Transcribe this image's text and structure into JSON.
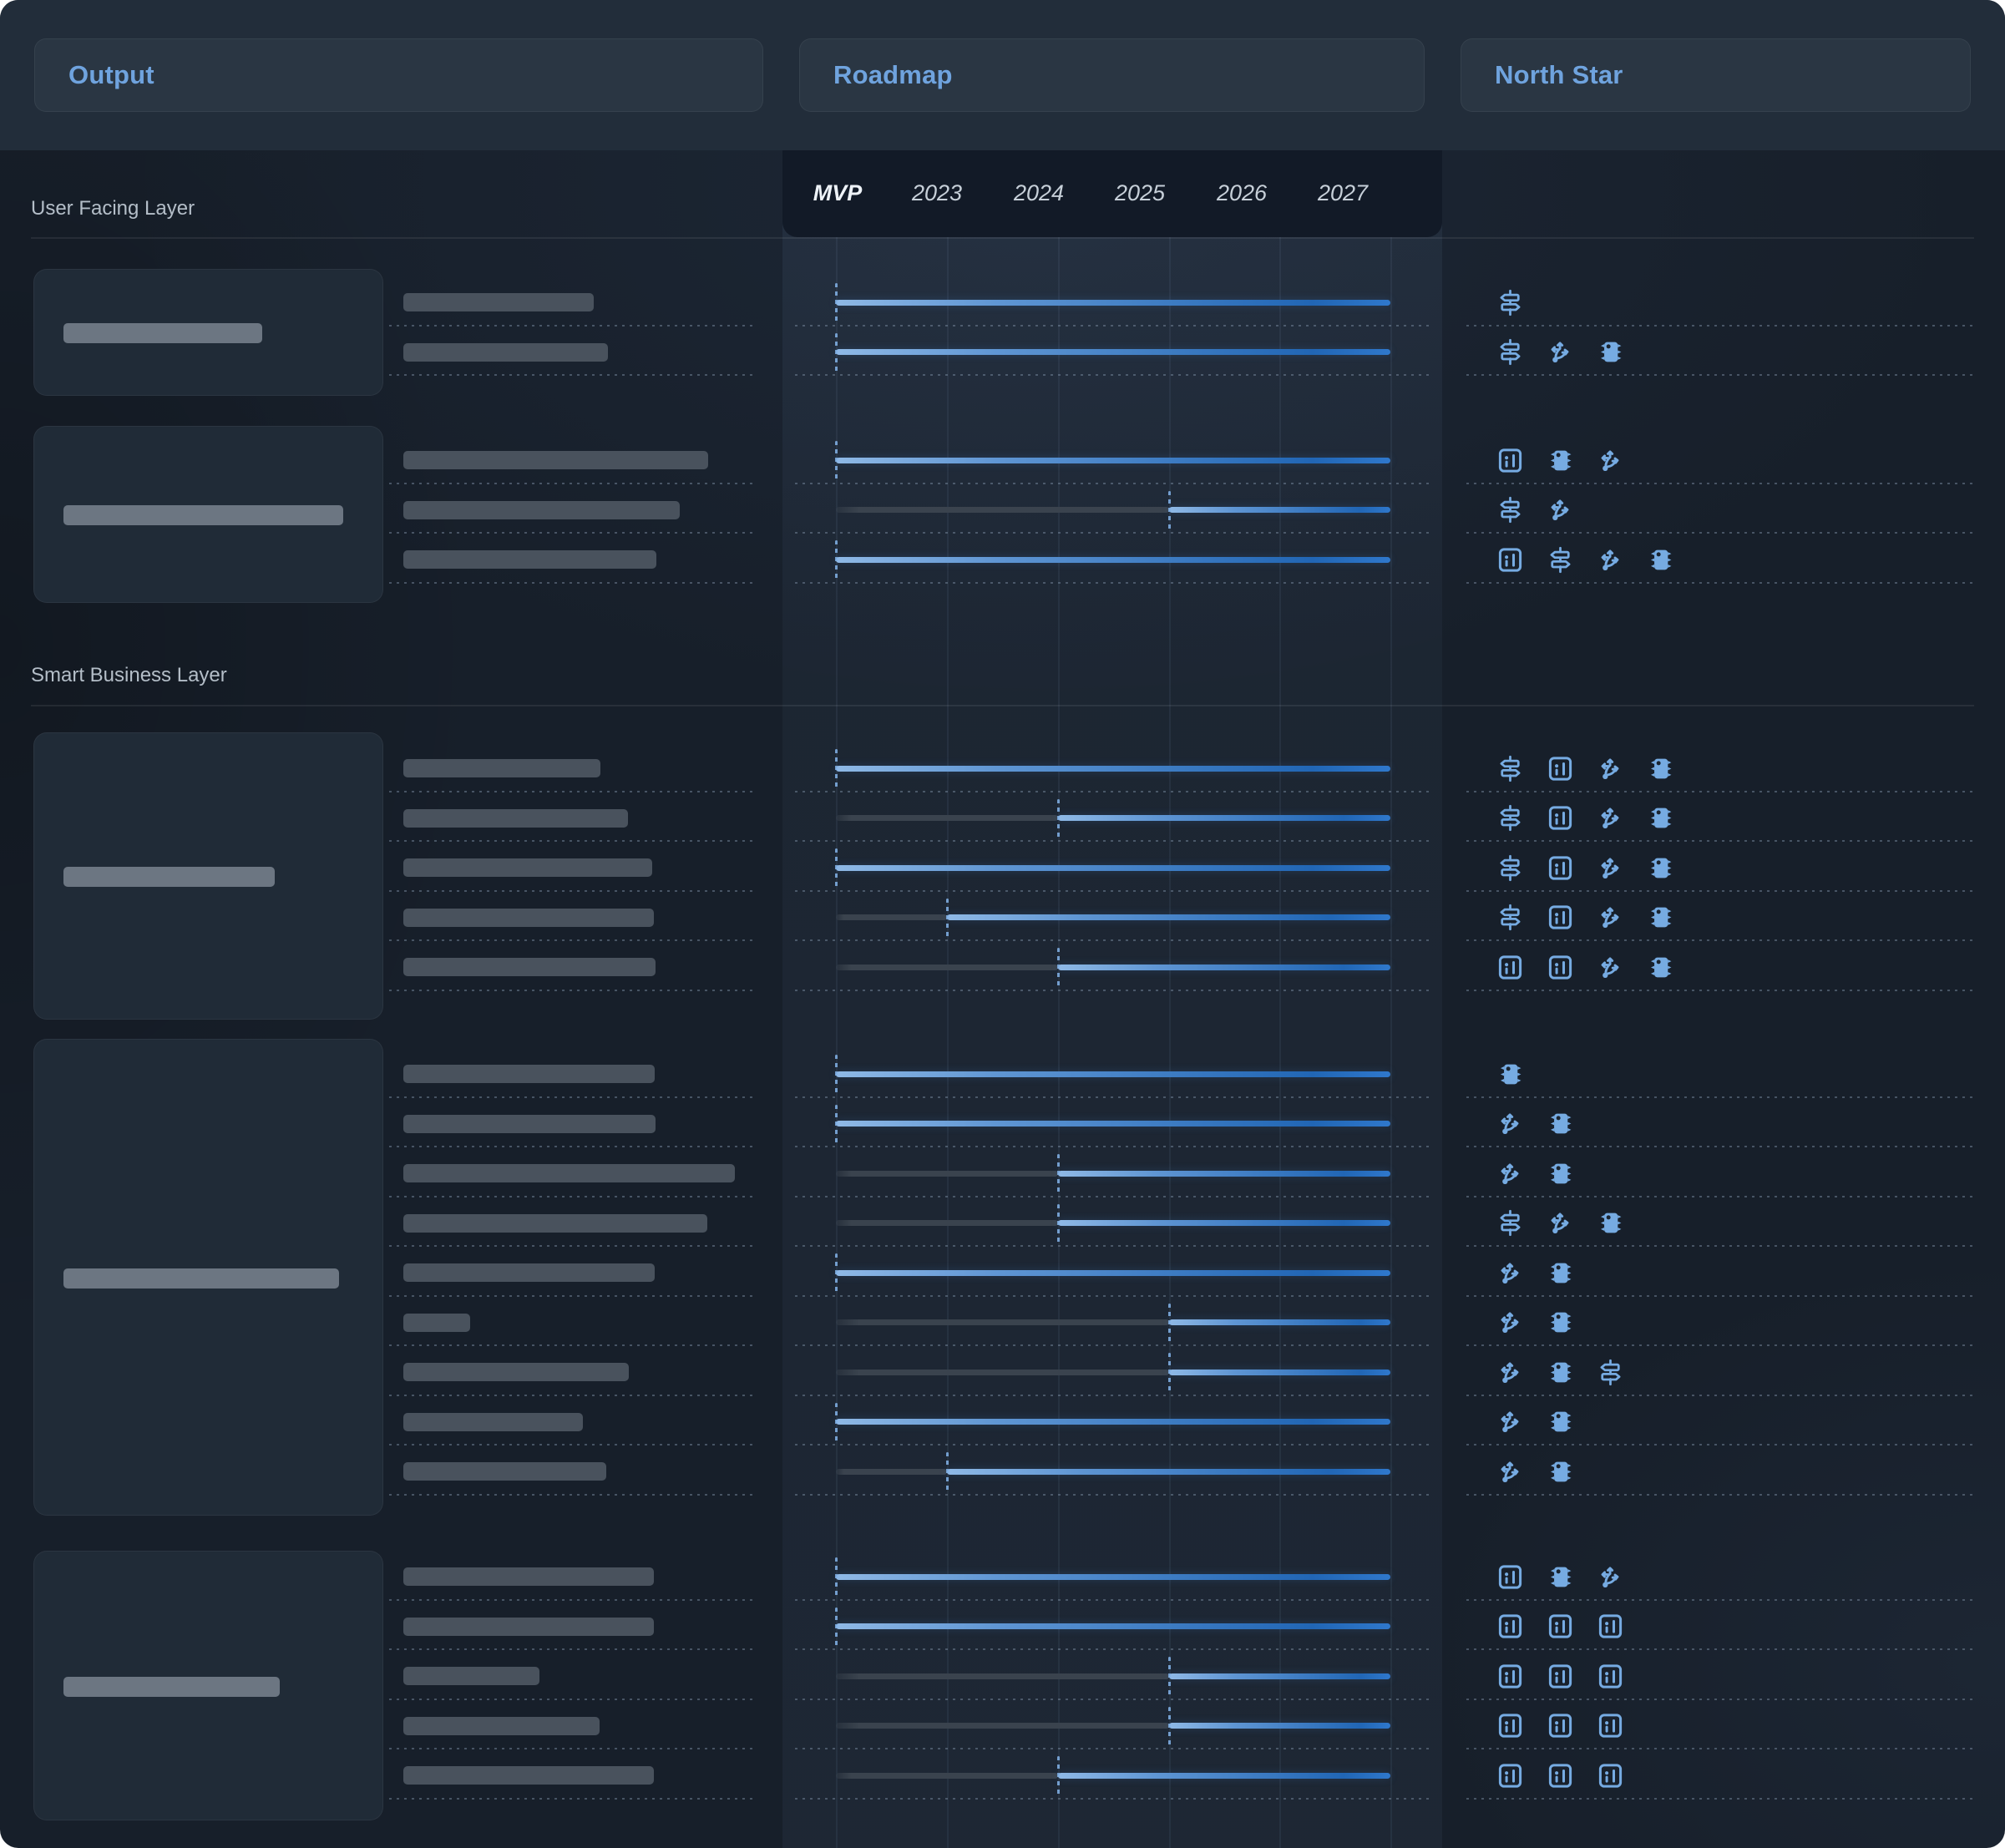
{
  "header": {
    "tabs": [
      {
        "label": "Output"
      },
      {
        "label": "Roadmap"
      },
      {
        "label": "North Star"
      }
    ]
  },
  "timeline": {
    "columns": [
      "MVP",
      "2023",
      "2024",
      "2025",
      "2026",
      "2027"
    ],
    "active_column": "MVP"
  },
  "colors": {
    "accent": "#6FA3DE",
    "icon": "#76ABE2",
    "bar_light": "#8FB9E6",
    "bar_dark": "#2166B5",
    "bar_tip": "#2F78CC",
    "gray_bar": "#3A434E",
    "marker": "#82B2E8",
    "placeholder_row": "#49525D",
    "placeholder_card": "#6C7682"
  },
  "sections": [
    {
      "label": "User Facing Layer",
      "groups": [
        {
          "card_placeholder_width": 238,
          "rows": [
            {
              "placeholder_width": 228,
              "starts": "MVP",
              "icons": [
                "signpost"
              ]
            },
            {
              "placeholder_width": 245,
              "starts": "MVP",
              "icons": [
                "signpost",
                "split-arrows",
                "microchip"
              ]
            }
          ]
        },
        {
          "card_placeholder_width": 335,
          "rows": [
            {
              "placeholder_width": 365,
              "starts": "MVP",
              "icons": [
                "chart",
                "microchip",
                "split-arrows"
              ]
            },
            {
              "placeholder_width": 331,
              "starts": "2025",
              "icons": [
                "signpost",
                "split-arrows"
              ]
            },
            {
              "placeholder_width": 303,
              "starts": "MVP",
              "icons": [
                "chart",
                "signpost",
                "split-arrows",
                "microchip"
              ]
            }
          ]
        }
      ]
    },
    {
      "label": "Smart Business Layer",
      "groups": [
        {
          "card_placeholder_width": 253,
          "rows": [
            {
              "placeholder_width": 236,
              "starts": "MVP",
              "icons": [
                "signpost",
                "chart",
                "split-arrows",
                "microchip"
              ]
            },
            {
              "placeholder_width": 269,
              "starts": "2024",
              "icons": [
                "signpost",
                "chart",
                "split-arrows",
                "microchip"
              ]
            },
            {
              "placeholder_width": 298,
              "starts": "MVP",
              "icons": [
                "signpost",
                "chart",
                "split-arrows",
                "microchip"
              ]
            },
            {
              "placeholder_width": 300,
              "starts": "2023",
              "icons": [
                "signpost",
                "chart",
                "split-arrows",
                "microchip"
              ]
            },
            {
              "placeholder_width": 302,
              "starts": "2024",
              "icons": [
                "chart",
                "chart",
                "split-arrows",
                "microchip"
              ]
            }
          ]
        },
        {
          "card_placeholder_width": 330,
          "rows": [
            {
              "placeholder_width": 301,
              "starts": "MVP",
              "icons": [
                "microchip"
              ]
            },
            {
              "placeholder_width": 302,
              "starts": "MVP",
              "icons": [
                "split-arrows",
                "microchip"
              ]
            },
            {
              "placeholder_width": 397,
              "starts": "2024",
              "icons": [
                "split-arrows",
                "microchip"
              ]
            },
            {
              "placeholder_width": 364,
              "starts": "2024",
              "icons": [
                "signpost",
                "split-arrows",
                "microchip"
              ]
            },
            {
              "placeholder_width": 301,
              "starts": "MVP",
              "icons": [
                "split-arrows",
                "microchip"
              ]
            },
            {
              "placeholder_width": 80,
              "starts": "2025",
              "icons": [
                "split-arrows",
                "microchip"
              ]
            },
            {
              "placeholder_width": 270,
              "starts": "2025",
              "icons": [
                "split-arrows",
                "microchip",
                "signpost"
              ]
            },
            {
              "placeholder_width": 215,
              "starts": "MVP",
              "icons": [
                "split-arrows",
                "microchip"
              ]
            },
            {
              "placeholder_width": 243,
              "starts": "2023",
              "icons": [
                "split-arrows",
                "microchip"
              ]
            }
          ]
        },
        {
          "card_placeholder_width": 259,
          "rows": [
            {
              "placeholder_width": 300,
              "starts": "MVP",
              "icons": [
                "chart",
                "microchip",
                "split-arrows"
              ]
            },
            {
              "placeholder_width": 300,
              "starts": "MVP",
              "icons": [
                "chart",
                "chart",
                "chart"
              ]
            },
            {
              "placeholder_width": 163,
              "starts": "2025",
              "icons": [
                "chart",
                "chart",
                "chart"
              ]
            },
            {
              "placeholder_width": 235,
              "starts": "2025",
              "icons": [
                "chart",
                "chart",
                "chart"
              ]
            },
            {
              "placeholder_width": 300,
              "starts": "2024",
              "icons": [
                "chart",
                "chart",
                "chart"
              ]
            }
          ]
        }
      ]
    }
  ]
}
